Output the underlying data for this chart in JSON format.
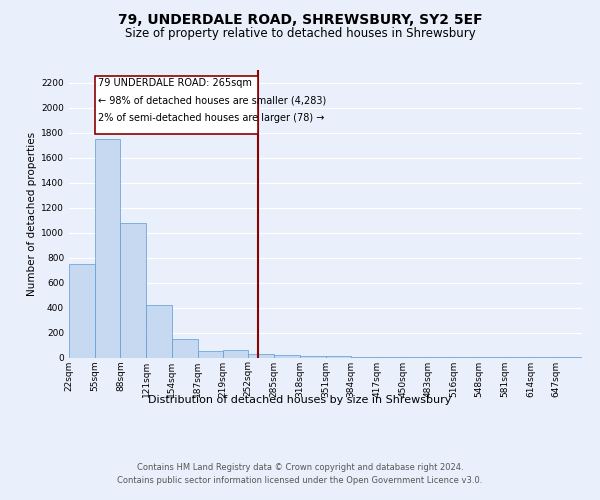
{
  "title": "79, UNDERDALE ROAD, SHREWSBURY, SY2 5EF",
  "subtitle": "Size of property relative to detached houses in Shrewsbury",
  "xlabel": "Distribution of detached houses by size in Shrewsbury",
  "ylabel": "Number of detached properties",
  "bin_edges": [
    22,
    55,
    88,
    121,
    154,
    187,
    219,
    252,
    285,
    318,
    351,
    384,
    417,
    450,
    483,
    516,
    548,
    581,
    614,
    647,
    680
  ],
  "bar_heights": [
    750,
    1750,
    1075,
    420,
    150,
    50,
    60,
    30,
    20,
    15,
    10,
    8,
    5,
    5,
    4,
    3,
    2,
    2,
    1,
    1
  ],
  "bar_color": "#c6d9f0",
  "bar_edge_color": "#5b9bd5",
  "property_size": 265,
  "property_line_color": "#8b0000",
  "annotation_box_color": "#8b0000",
  "annotation_text": [
    "79 UNDERDALE ROAD: 265sqm",
    "← 98% of detached houses are smaller (4,283)",
    "2% of semi-detached houses are larger (78) →"
  ],
  "ylim": [
    0,
    2300
  ],
  "yticks": [
    0,
    200,
    400,
    600,
    800,
    1000,
    1200,
    1400,
    1600,
    1800,
    2000,
    2200
  ],
  "footer_line1": "Contains HM Land Registry data © Crown copyright and database right 2024.",
  "footer_line2": "Contains public sector information licensed under the Open Government Licence v3.0.",
  "bg_color": "#eaf0fb",
  "plot_bg_color": "#eaf0fb",
  "grid_color": "#ffffff",
  "title_fontsize": 10,
  "subtitle_fontsize": 8.5,
  "axis_label_fontsize": 7.5,
  "tick_fontsize": 6.5,
  "annotation_fontsize": 7,
  "footer_fontsize": 6
}
